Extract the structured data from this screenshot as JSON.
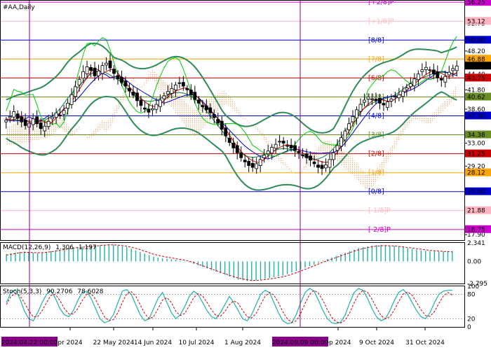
{
  "chart_data": {
    "type": "candlestick",
    "title": "#AA,Daily",
    "colors": {
      "candle_up": "#ffffff",
      "candle_down": "#000000",
      "bollinger": "#2e8b57",
      "bollinger_mid": "#2e8b57",
      "alligator_jaw": "#0000cc",
      "alligator_teeth": "#cc0000",
      "alligator_lips": "#00cc00",
      "ichimoku_cloud": "#e8a060",
      "macd_hist": "#20b2aa",
      "macd_signal": "#cc0000",
      "stoch_main": "#20b2aa",
      "stoch_signal": "#cc0000",
      "vline": "#8b008b"
    },
    "y_axis": {
      "range": [
        17.0,
        56.5
      ],
      "ticks": [
        "52.75",
        "48.20",
        "44.40",
        "41.80",
        "38.60",
        "33.00",
        "29.20",
        "21.85",
        "17.90"
      ]
    },
    "x_axis": {
      "ticks": [
        "pr 2024",
        "22 May 2024",
        "14 Jun 2024",
        "10 Jul 2024",
        "1 Aug 2024",
        "ep 2024",
        "9 Oct 2024",
        "31 Oct 2024"
      ],
      "highlight_labels": [
        "2024.04.22 00:00",
        "2024.09.09 00:00"
      ]
    },
    "murrey_levels": [
      {
        "label": "[+2/8]P",
        "price": "56.25",
        "color": "#cc00cc",
        "text_color": "#cc00cc"
      },
      {
        "label": "[+1/8]P",
        "price": "53.12",
        "color": "#ffb6c1",
        "text_color": "#ffb6c1"
      },
      {
        "label": "[8/8]",
        "price": "50.00",
        "color": "#0000cc",
        "text_color": "#0000cc"
      },
      {
        "label": "[7/8]",
        "price": "46.88",
        "color": "#ffa500",
        "text_color": "#ffa500"
      },
      {
        "label": "[6/8]",
        "price": "43.75",
        "color": "#cc0000",
        "text_color": "#cc0000"
      },
      {
        "label": "[5/8]",
        "price": "40.62",
        "color": "#6b8e23",
        "text_color": "#6b8e23"
      },
      {
        "label": "[4/8]",
        "price": "37.50",
        "color": "#0000cc",
        "text_color": "#0000cc"
      },
      {
        "label": "[3/8]",
        "price": "34.38",
        "color": "#6b8e23",
        "text_color": "#6b8e23"
      },
      {
        "label": "[2/8]",
        "price": "31.25",
        "color": "#cc0000",
        "text_color": "#cc0000"
      },
      {
        "label": "[1/8]",
        "price": "28.12",
        "color": "#ffa500",
        "text_color": "#ffa500"
      },
      {
        "label": "[0/8]",
        "price": "25.00",
        "color": "#0000cc",
        "text_color": "#0000cc"
      },
      {
        "label": "[-1/8]P",
        "price": "21.88",
        "color": "#ffb6c1",
        "text_color": "#ffb6c1"
      },
      {
        "label": "[-2/8]P",
        "price": "18.75",
        "color": "#cc00cc",
        "text_color": "#cc00cc"
      }
    ],
    "current_price": "45.73",
    "price_series": [
      36.8,
      37.4,
      38.2,
      37.1,
      36.5,
      35.9,
      36.3,
      37.0,
      36.2,
      35.4,
      35.8,
      36.6,
      37.3,
      38.0,
      37.6,
      38.4,
      39.6,
      41.0,
      42.3,
      43.5,
      44.8,
      45.6,
      45.0,
      44.1,
      44.9,
      45.8,
      46.2,
      45.4,
      44.5,
      43.6,
      43.0,
      42.4,
      41.6,
      40.9,
      40.0,
      39.2,
      38.6,
      38.1,
      38.7,
      39.4,
      40.1,
      40.8,
      41.5,
      42.0,
      42.6,
      42.9,
      42.4,
      41.8,
      41.0,
      40.2,
      39.6,
      39.0,
      38.5,
      38.0,
      37.2,
      36.3,
      35.3,
      34.2,
      33.1,
      32.2,
      31.4,
      30.6,
      29.9,
      29.3,
      29.0,
      29.6,
      30.3,
      31.0,
      31.7,
      32.3,
      32.8,
      33.3,
      33.0,
      32.6,
      32.2,
      31.8,
      31.4,
      31.0,
      30.6,
      30.2,
      29.6,
      29.0,
      28.8,
      29.4,
      30.3,
      31.4,
      32.6,
      33.9,
      35.0,
      36.2,
      37.4,
      38.5,
      39.4,
      40.1,
      40.6,
      40.3,
      40.0,
      39.6,
      39.3,
      39.8,
      40.3,
      40.7,
      41.0,
      41.5,
      42.1,
      42.8,
      43.6,
      44.4,
      45.1,
      45.5,
      45.0,
      44.4,
      43.8,
      43.4,
      44.0,
      44.7,
      45.3,
      45.73
    ],
    "macd": {
      "label": "MACD(12,26,9)",
      "main": "1.306",
      "signal": "1.197",
      "ticks": [
        "2.341",
        "0.00",
        "-2.795"
      ],
      "hist": [
        0.9,
        1.0,
        1.1,
        1.2,
        1.25,
        1.2,
        1.1,
        1.05,
        1.1,
        1.2,
        1.3,
        1.4,
        1.5,
        1.6,
        1.7,
        1.75,
        1.8,
        1.85,
        1.9,
        1.95,
        2.0,
        2.05,
        2.1,
        2.15,
        2.1,
        2.0,
        1.9,
        1.8,
        1.6,
        1.4,
        1.2,
        1.0,
        0.8,
        0.6,
        0.5,
        0.4,
        0.35,
        0.3,
        0.2,
        0.1,
        0.05,
        -0.1,
        -0.3,
        -0.5,
        -0.7,
        -0.9,
        -1.1,
        -1.3,
        -1.5,
        -1.7,
        -1.9,
        -2.1,
        -2.3,
        -2.4,
        -2.5,
        -2.5,
        -2.4,
        -2.3,
        -2.2,
        -2.1,
        -2.0,
        -1.9,
        -1.8,
        -1.6,
        -1.4,
        -1.2,
        -1.0,
        -0.8,
        -0.6,
        -0.4,
        -0.2,
        0.1,
        0.3,
        0.5,
        0.7,
        0.9,
        1.1,
        1.3,
        1.5,
        1.7,
        1.8,
        1.9,
        2.0,
        2.05,
        2.1,
        2.05,
        2.0,
        1.95,
        1.9,
        1.8,
        1.7,
        1.6,
        1.5,
        1.4,
        1.35,
        1.3,
        1.3,
        1.25,
        1.25,
        1.3,
        1.3
      ],
      "signal_line": [
        0.8,
        0.9,
        1.0,
        1.1,
        1.15,
        1.15,
        1.12,
        1.1,
        1.1,
        1.15,
        1.22,
        1.3,
        1.4,
        1.5,
        1.6,
        1.68,
        1.75,
        1.8,
        1.85,
        1.9,
        1.95,
        2.0,
        2.05,
        2.1,
        2.1,
        2.05,
        2.0,
        1.92,
        1.8,
        1.65,
        1.5,
        1.3,
        1.1,
        0.92,
        0.78,
        0.65,
        0.55,
        0.45,
        0.35,
        0.25,
        0.15,
        0.02,
        -0.15,
        -0.35,
        -0.55,
        -0.75,
        -0.95,
        -1.15,
        -1.35,
        -1.55,
        -1.75,
        -1.92,
        -2.1,
        -2.22,
        -2.32,
        -2.4,
        -2.4,
        -2.36,
        -2.3,
        -2.22,
        -2.14,
        -2.05,
        -1.95,
        -1.8,
        -1.62,
        -1.42,
        -1.22,
        -1.0,
        -0.78,
        -0.55,
        -0.32,
        -0.1,
        0.1,
        0.3,
        0.5,
        0.7,
        0.9,
        1.1,
        1.3,
        1.48,
        1.62,
        1.75,
        1.85,
        1.92,
        1.98,
        2.0,
        1.98,
        1.95,
        1.9,
        1.84,
        1.77,
        1.7,
        1.62,
        1.54,
        1.47,
        1.4,
        1.35,
        1.3,
        1.26,
        1.23,
        1.197
      ]
    },
    "stoch": {
      "label": "Stoch(5,3,3)",
      "main": "90.2706",
      "signal": "78.6028",
      "ticks": [
        "100",
        "80",
        "20",
        "0"
      ],
      "main_line": [
        60,
        85,
        92,
        70,
        40,
        20,
        15,
        35,
        60,
        80,
        90,
        70,
        45,
        30,
        25,
        40,
        65,
        85,
        88,
        70,
        45,
        20,
        10,
        15,
        30,
        60,
        88,
        92,
        80,
        55,
        30,
        15,
        20,
        45,
        70,
        85,
        60,
        35,
        20,
        30,
        50,
        75,
        88,
        80,
        60,
        40,
        25,
        20,
        35,
        55,
        75,
        60,
        40,
        20,
        15,
        30,
        55,
        80,
        90,
        85,
        60,
        35,
        15,
        8,
        10,
        30,
        60,
        85,
        95,
        88,
        65,
        40,
        20,
        10,
        8,
        12,
        30,
        60,
        85,
        95,
        90,
        70,
        45,
        25,
        15,
        20,
        40,
        65,
        85,
        92,
        80,
        60,
        40,
        25,
        20,
        35,
        60,
        80,
        88,
        90,
        90.27
      ],
      "signal_line": [
        55,
        75,
        82,
        78,
        60,
        40,
        25,
        25,
        40,
        60,
        78,
        80,
        65,
        45,
        32,
        32,
        45,
        65,
        80,
        82,
        68,
        45,
        25,
        15,
        18,
        35,
        60,
        82,
        87,
        76,
        55,
        33,
        20,
        25,
        45,
        66,
        72,
        60,
        38,
        28,
        33,
        52,
        72,
        82,
        76,
        60,
        42,
        28,
        26,
        38,
        55,
        64,
        58,
        40,
        25,
        22,
        33,
        55,
        75,
        85,
        78,
        60,
        37,
        20,
        11,
        15,
        33,
        58,
        80,
        90,
        83,
        65,
        42,
        23,
        12,
        10,
        17,
        35,
        60,
        80,
        90,
        85,
        68,
        47,
        28,
        20,
        25,
        42,
        63,
        81,
        86,
        78,
        60,
        42,
        28,
        26,
        38,
        58,
        76,
        85,
        78.6
      ]
    }
  }
}
